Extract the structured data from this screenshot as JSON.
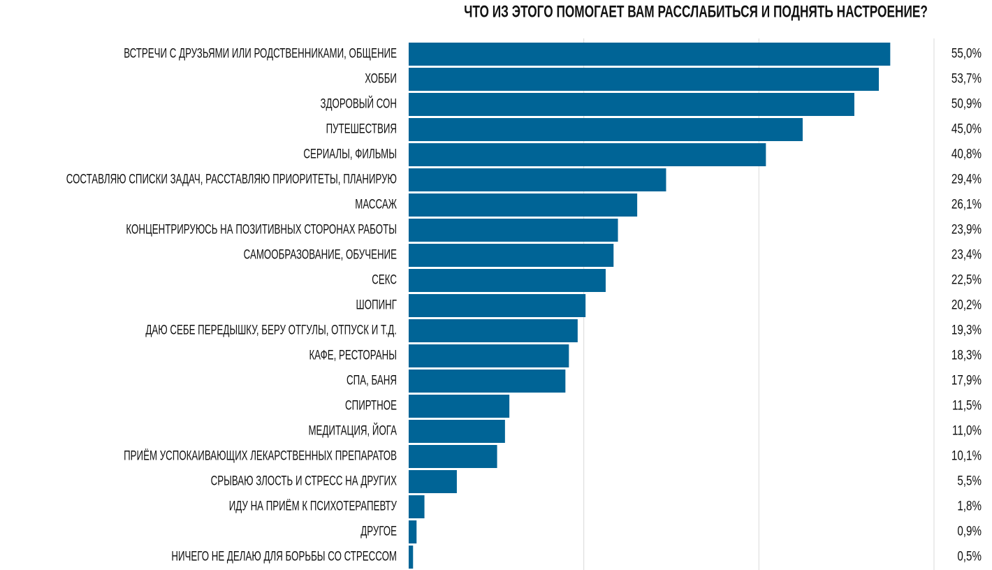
{
  "chart_data": {
    "type": "barh",
    "title": "ЧТО ИЗ ЭТОГО ПОМОГАЕТ ВАМ РАССЛАБИТЬСЯ И ПОДНЯТЬ НАСТРОЕНИЕ?",
    "categories": [
      "ВСТРЕЧИ С ДРУЗЬЯМИ ИЛИ РОДСТВЕННИКАМИ, ОБЩЕНИЕ",
      "ХОББИ",
      "ЗДОРОВЫЙ СОН",
      "ПУТЕШЕСТВИЯ",
      "СЕРИАЛЫ, ФИЛЬМЫ",
      "СОСТАВЛЯЮ СПИСКИ ЗАДАЧ, РАССТАВЛЯЮ ПРИОРИТЕТЫ, ПЛАНИРУЮ",
      "МАССАЖ",
      "КОНЦЕНТРИРУЮСЬ НА ПОЗИТИВНЫХ СТОРОНАХ РАБОТЫ",
      "САМООБРАЗОВАНИЕ, ОБУЧЕНИЕ",
      "СЕКС",
      "ШОПИНГ",
      "ДАЮ СЕБЕ ПЕРЕДЫШКУ, БЕРУ ОТГУЛЫ, ОТПУСК И Т.Д.",
      "КАФЕ, РЕСТОРАНЫ",
      "СПА, БАНЯ",
      "СПИРТНОЕ",
      "МЕДИТАЦИЯ, ЙОГА",
      "ПРИЁМ УСПОКАИВАЮЩИХ ЛЕКАРСТВЕННЫХ ПРЕПАРАТОВ",
      "СРЫВАЮ ЗЛОСТЬ И СТРЕСС НА ДРУГИХ",
      "ИДУ НА ПРИЁМ К ПСИХОТЕРАПЕВТУ",
      "ДРУГОЕ",
      "НИЧЕГО НЕ ДЕЛАЮ ДЛЯ БОРЬБЫ СО СТРЕССОМ"
    ],
    "values": [
      55.0,
      53.7,
      50.9,
      45.0,
      40.8,
      29.4,
      26.1,
      23.9,
      23.4,
      22.5,
      20.2,
      19.3,
      18.3,
      17.9,
      11.5,
      11.0,
      10.1,
      5.5,
      1.8,
      0.9,
      0.5
    ],
    "value_labels": [
      "55,0%",
      "53,7%",
      "50,9%",
      "45,0%",
      "40,8%",
      "29,4%",
      "26,1%",
      "23,9%",
      "23,4%",
      "22,5%",
      "20,2%",
      "19,3%",
      "18,3%",
      "17,9%",
      "11,5%",
      "11,0%",
      "10,1%",
      "5,5%",
      "1,8%",
      "0,9%",
      "0,5%"
    ],
    "color": "#006496",
    "xlim": [
      0,
      60
    ],
    "xticks": [
      20,
      40,
      60
    ],
    "grid": true
  }
}
